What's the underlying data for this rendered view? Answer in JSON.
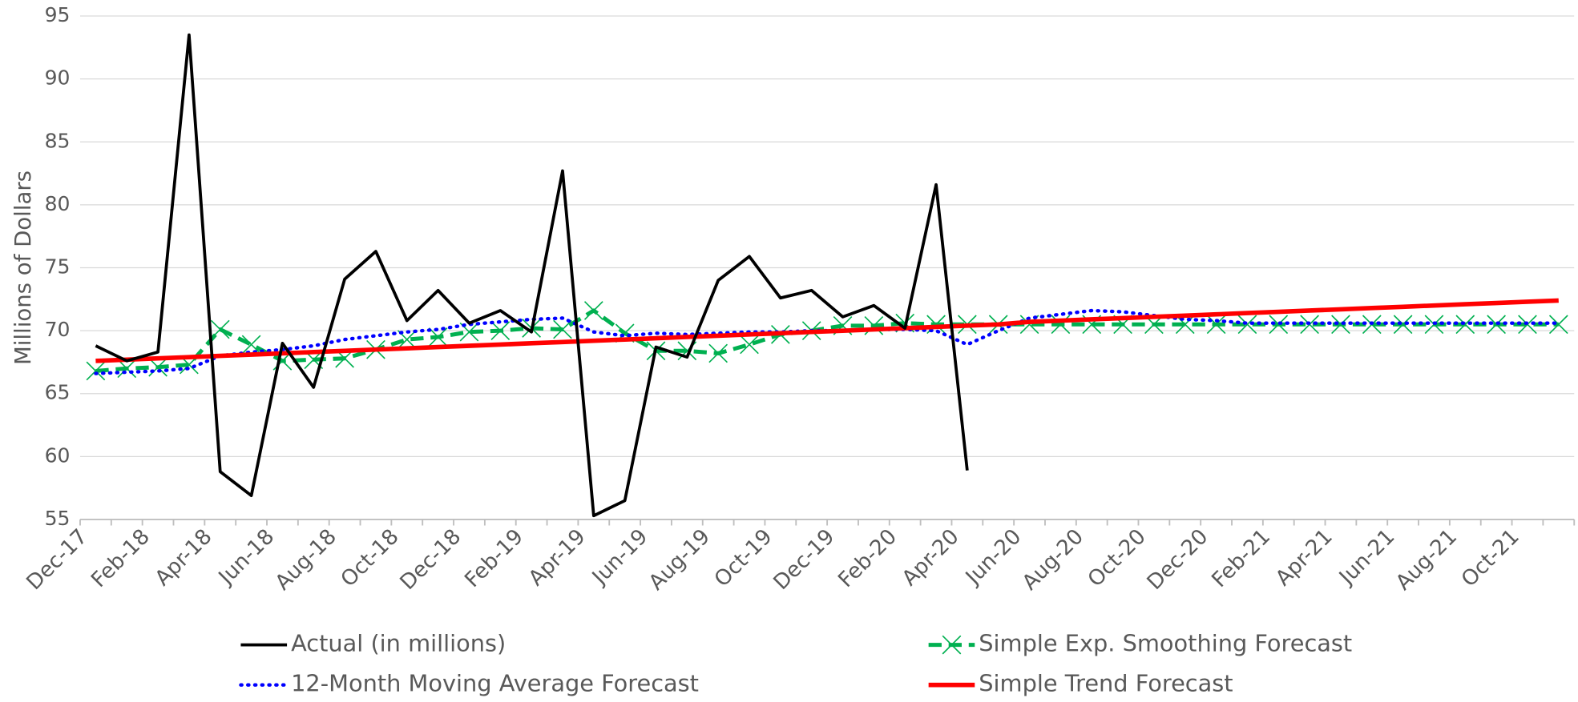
{
  "chart_data": {
    "type": "line",
    "y_label": "Millions of Dollars",
    "categories": [
      "Dec-17",
      null,
      "Feb-18",
      null,
      "Apr-18",
      null,
      "Jun-18",
      null,
      "Aug-18",
      null,
      "Oct-18",
      null,
      "Dec-18",
      null,
      "Feb-19",
      null,
      "Apr-19",
      null,
      "Jun-19",
      null,
      "Aug-19",
      null,
      "Oct-19",
      null,
      "Dec-19",
      null,
      "Feb-20",
      null,
      "Apr-20",
      null,
      "Jun-20",
      null,
      "Aug-20",
      null,
      "Oct-20",
      null,
      "Dec-20",
      null,
      "Feb-21",
      null,
      "Apr-21",
      null,
      "Jun-21",
      null,
      "Aug-21",
      null,
      "Oct-21",
      null
    ],
    "series": [
      {
        "name": "Actual (in millions)",
        "color": "#000000",
        "values": [
          68.8,
          67.6,
          68.3,
          93.5,
          58.8,
          56.9,
          69.0,
          65.5,
          74.1,
          76.3,
          70.8,
          73.2,
          70.6,
          71.6,
          69.9,
          82.7,
          55.3,
          56.5,
          68.7,
          67.9,
          74.0,
          75.9,
          72.6,
          73.2,
          71.1,
          72.0,
          70.2,
          81.6,
          58.9,
          null,
          null,
          null,
          null,
          null,
          null,
          null,
          null,
          null,
          null,
          null,
          null,
          null,
          null,
          null,
          null,
          null,
          null,
          null
        ]
      },
      {
        "name": "Simple Exp. Smoothing Forecast",
        "color": "#00b050",
        "marker": "x",
        "values": [
          66.8,
          67.0,
          67.1,
          67.3,
          70.1,
          68.9,
          67.6,
          67.7,
          67.8,
          68.5,
          69.3,
          69.5,
          69.9,
          70.0,
          70.2,
          70.1,
          71.6,
          69.8,
          68.4,
          68.4,
          68.2,
          68.9,
          69.7,
          70.0,
          70.4,
          70.4,
          70.6,
          70.5,
          70.5,
          70.5,
          70.5,
          70.5,
          70.5,
          70.5,
          70.5,
          70.5,
          70.5,
          70.5,
          70.5,
          70.5,
          70.5,
          70.5,
          70.5,
          70.5,
          70.5,
          70.5,
          70.5,
          70.5
        ]
      },
      {
        "name": "12-Month Moving Average Forecast",
        "color": "#0000ff",
        "values": [
          66.6,
          66.7,
          66.8,
          67.0,
          68.0,
          68.3,
          68.5,
          68.8,
          69.3,
          69.6,
          69.9,
          70.1,
          70.5,
          70.7,
          70.9,
          71.0,
          69.9,
          69.6,
          69.8,
          69.7,
          69.8,
          69.9,
          69.9,
          70.0,
          70.0,
          70.1,
          70.1,
          70.0,
          68.9,
          70.0,
          71.0,
          71.3,
          71.6,
          71.5,
          71.2,
          70.9,
          70.8,
          70.6,
          70.6,
          70.6,
          70.6,
          70.6,
          70.6,
          70.6,
          70.6,
          70.6,
          70.6,
          70.6
        ]
      },
      {
        "name": "Simple Trend Forecast",
        "color": "#ff0000",
        "values": [
          67.6,
          67.7,
          67.8,
          67.9,
          68.0,
          68.1,
          68.2,
          68.3,
          68.4,
          68.5,
          68.6,
          68.7,
          68.8,
          68.9,
          69.0,
          69.1,
          69.2,
          69.3,
          69.4,
          69.5,
          69.6,
          69.7,
          69.8,
          69.9,
          70.0,
          70.1,
          70.2,
          70.3,
          70.4,
          70.5,
          70.7,
          70.8,
          70.9,
          71.0,
          71.1,
          71.2,
          71.3,
          71.4,
          71.5,
          71.6,
          71.7,
          71.8,
          71.9,
          72.0,
          72.1,
          72.2,
          72.3,
          72.4
        ]
      }
    ],
    "ylim": [
      55,
      95
    ],
    "yticks": [
      55,
      60,
      65,
      70,
      75,
      80,
      85,
      90,
      95
    ],
    "grid": true
  }
}
